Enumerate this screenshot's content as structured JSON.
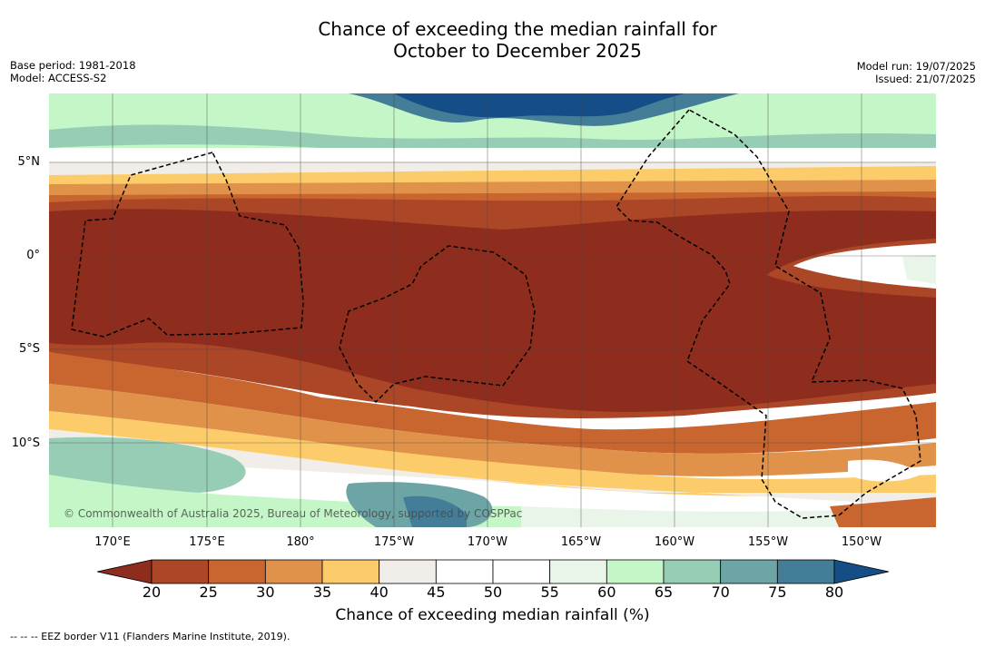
{
  "title_line1": "Chance of exceeding the median rainfall for",
  "title_line2": "October to December 2025",
  "meta_left": {
    "base_period": "Base period: 1981-2018",
    "model": "Model: ACCESS-S2"
  },
  "meta_right": {
    "model_run": "Model run: 19/07/2025",
    "issued": "Issued: 21/07/2025"
  },
  "lat_labels": [
    "5°N",
    "0°",
    "5°S",
    "10°S"
  ],
  "lon_labels": [
    "170°E",
    "175°E",
    "180°",
    "175°W",
    "170°W",
    "165°W",
    "160°W",
    "155°W",
    "150°W"
  ],
  "copyright": "© Commonwealth of Australia 2025, Bureau of Meteorology, supported by COSPPac",
  "colorbar": {
    "ticks": [
      "20",
      "25",
      "30",
      "35",
      "40",
      "45",
      "50",
      "55",
      "60",
      "65",
      "70",
      "75",
      "80"
    ],
    "colors": [
      "#8e2d1d",
      "#ab4726",
      "#c9652f",
      "#e0924a",
      "#fdcc6a",
      "#f1ede8",
      "#ffffff",
      "#ffffff",
      "#eaf5e9",
      "#c4f6c7",
      "#97ccb5",
      "#6da5a7",
      "#437d98",
      "#154d87"
    ],
    "label": "Chance of exceeding median rainfall (%)"
  },
  "legend_note": "--  --  -- EEZ border V11 (Flanders Marine Institute, 2019)."
}
